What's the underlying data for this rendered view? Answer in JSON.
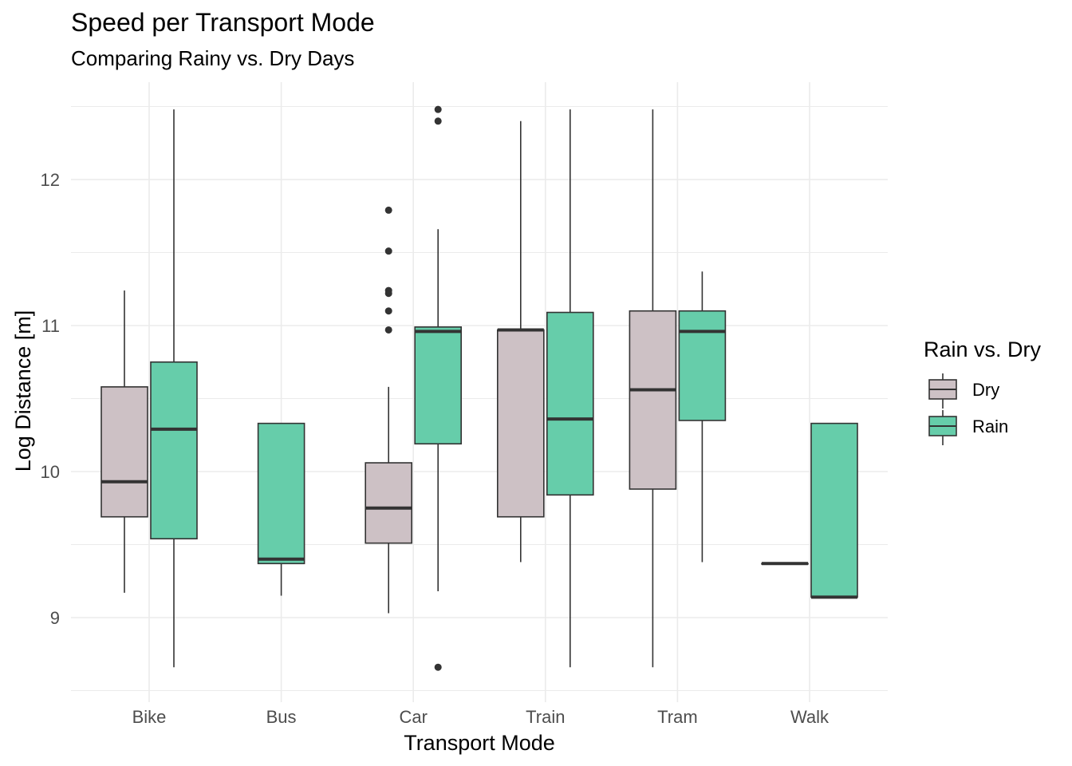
{
  "chart_data": {
    "type": "boxplot",
    "title": "Speed per Transport Mode",
    "subtitle": "Comparing Rainy vs. Dry Days",
    "xlabel": "Transport Mode",
    "ylabel": "Log Distance [m]",
    "categories": [
      "Bike",
      "Bus",
      "Car",
      "Train",
      "Tram",
      "Walk"
    ],
    "ylim": [
      8.5,
      12.6
    ],
    "yticks": [
      9,
      10,
      11,
      12
    ],
    "ytick_labels": [
      "9",
      "10",
      "11",
      "12"
    ],
    "grid": true,
    "legend": {
      "title": "Rain vs. Dry",
      "position": "right"
    },
    "series": [
      {
        "name": "Dry",
        "color": "#CDC1C5",
        "boxes": [
          {
            "category": "Bike",
            "min": 9.17,
            "q1": 9.69,
            "median": 9.93,
            "q3": 10.58,
            "max": 11.24,
            "outliers": []
          },
          null,
          {
            "category": "Car",
            "min": 9.03,
            "q1": 9.51,
            "median": 9.75,
            "q3": 10.06,
            "max": 10.58,
            "outliers": [
              10.97,
              11.1,
              11.22,
              11.24,
              11.51,
              11.79
            ]
          },
          {
            "category": "Train",
            "min": 9.38,
            "q1": 9.69,
            "median": 10.97,
            "q3": 10.97,
            "max": 12.4,
            "outliers": []
          },
          {
            "category": "Tram",
            "min": 8.66,
            "q1": 9.88,
            "median": 10.56,
            "q3": 11.1,
            "max": 12.48,
            "outliers": []
          },
          {
            "category": "Walk",
            "min": 9.37,
            "q1": 9.37,
            "median": 9.37,
            "q3": 9.37,
            "max": 9.37,
            "outliers": []
          }
        ]
      },
      {
        "name": "Rain",
        "color": "#66CDAA",
        "boxes": [
          {
            "category": "Bike",
            "min": 8.66,
            "q1": 9.54,
            "median": 10.29,
            "q3": 10.75,
            "max": 12.48,
            "outliers": []
          },
          {
            "category": "Bus",
            "min": 9.15,
            "q1": 9.37,
            "median": 9.4,
            "q3": 10.33,
            "max": 10.33,
            "outliers": []
          },
          {
            "category": "Car",
            "min": 9.18,
            "q1": 10.19,
            "median": 10.96,
            "q3": 10.99,
            "max": 11.66,
            "outliers": [
              8.66,
              12.4,
              12.48
            ]
          },
          {
            "category": "Train",
            "min": 8.66,
            "q1": 9.84,
            "median": 10.36,
            "q3": 11.09,
            "max": 12.48,
            "outliers": []
          },
          {
            "category": "Tram",
            "min": 9.38,
            "q1": 10.35,
            "median": 10.96,
            "q3": 11.1,
            "max": 11.37,
            "outliers": []
          },
          {
            "category": "Walk",
            "min": 9.14,
            "q1": 9.14,
            "median": 9.14,
            "q3": 10.33,
            "max": 10.33,
            "outliers": []
          }
        ]
      }
    ]
  }
}
